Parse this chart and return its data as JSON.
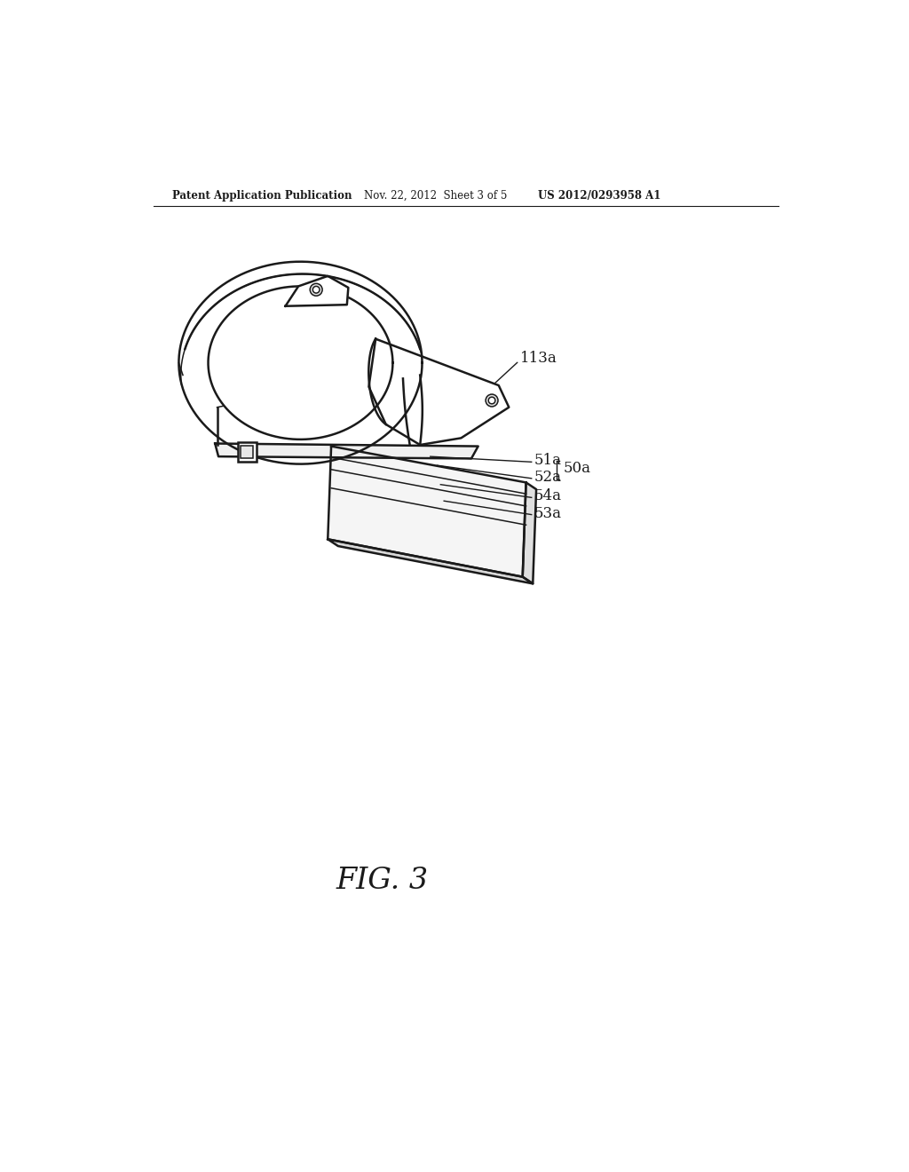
{
  "header_left": "Patent Application Publication",
  "header_mid": "Nov. 22, 2012  Sheet 3 of 5",
  "header_right": "US 2012/0293958 A1",
  "fig_label": "FIG. 3",
  "background": "#ffffff",
  "line_color": "#1a1a1a",
  "label_113a": "113a",
  "label_51a": "51a",
  "label_52a": "52a",
  "label_53a": "53a",
  "label_54a": "54a",
  "label_50a": "50a",
  "lw_main": 1.8,
  "lw_thin": 1.1,
  "lw_thick": 2.2
}
